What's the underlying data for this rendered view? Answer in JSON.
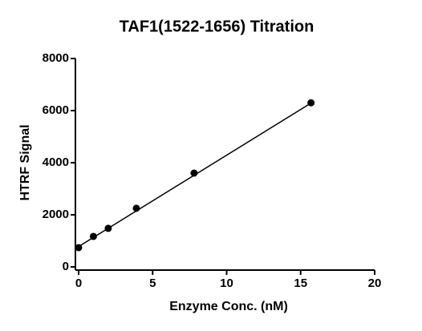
{
  "chart_data": {
    "type": "scatter",
    "title": "TAF1(1522-1656) Titration",
    "x_label": "Enzyme Conc. (nM)",
    "y_label": "HTRF Signal",
    "x": [
      0,
      1,
      2,
      3.9,
      7.8,
      15.7
    ],
    "values": [
      740,
      1170,
      1480,
      2250,
      3600,
      6300
    ],
    "color": "#000000",
    "fit_line": {
      "x": [
        0,
        15.7
      ],
      "values": [
        780,
        6290
      ]
    },
    "xlim": [
      0,
      20
    ],
    "xticks": [
      0,
      5,
      10,
      15,
      20
    ],
    "ylim": [
      0,
      8000
    ],
    "yticks": [
      0,
      2000,
      4000,
      6000,
      8000
    ]
  }
}
